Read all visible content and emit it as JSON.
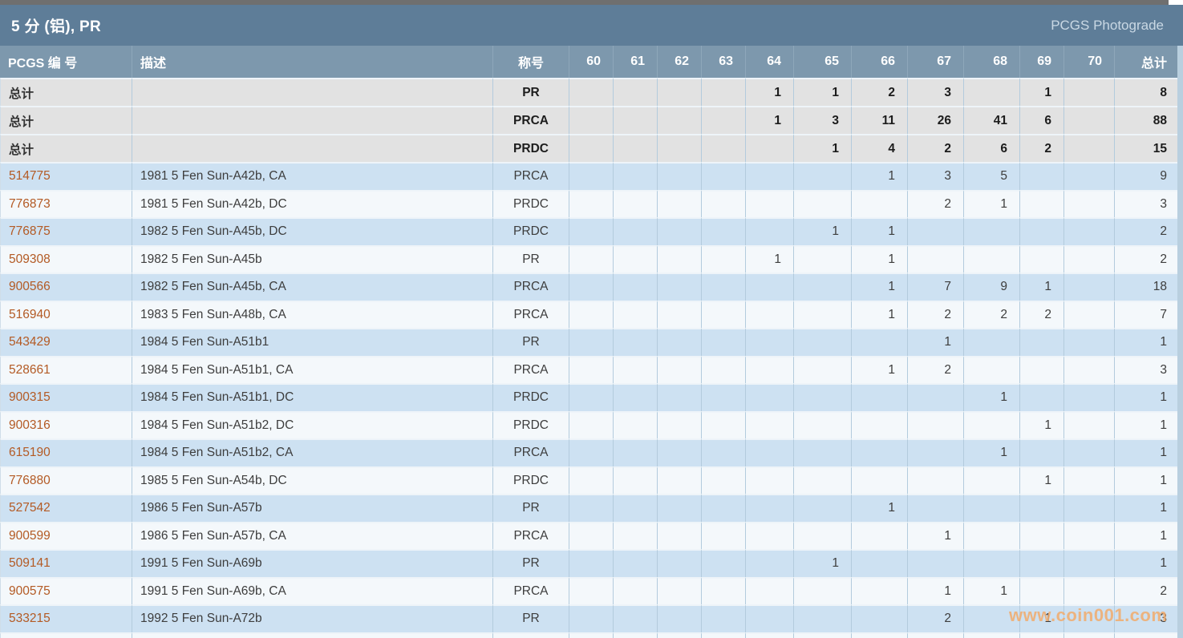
{
  "title_bar": {
    "title": "5 分 (铝), PR",
    "right_label": "PCGS Photograde"
  },
  "watermark": "www.coin001.com",
  "colors": {
    "title_bar_bg": "#5e7d98",
    "header_row_bg": "#7d98ad",
    "total_row_bg": "#e2e2e2",
    "row_blue": "#cde1f2",
    "row_white": "#f4f8fb",
    "grid_line": "#b3cbdd",
    "link": "#b35a24",
    "watermark": "#f0ac6e"
  },
  "table": {
    "columns": {
      "number": "PCGS 编 号",
      "description": "描述",
      "designation": "称号",
      "grades": [
        "60",
        "61",
        "62",
        "63",
        "64",
        "65",
        "66",
        "67",
        "68",
        "69",
        "70"
      ],
      "total": "总计"
    },
    "total_label": "总计",
    "total_rows": [
      {
        "designation": "PR",
        "grades": {
          "64": "1",
          "65": "1",
          "66": "2",
          "67": "3",
          "69": "1"
        },
        "total": "8"
      },
      {
        "designation": "PRCA",
        "grades": {
          "64": "1",
          "65": "3",
          "66": "11",
          "67": "26",
          "68": "41",
          "69": "6"
        },
        "total": "88"
      },
      {
        "designation": "PRDC",
        "grades": {
          "65": "1",
          "66": "4",
          "67": "2",
          "68": "6",
          "69": "2"
        },
        "total": "15"
      }
    ],
    "rows": [
      {
        "number": "514775",
        "description": "1981 5 Fen Sun-A42b, CA",
        "designation": "PRCA",
        "grades": {
          "66": "1",
          "67": "3",
          "68": "5"
        },
        "total": "9"
      },
      {
        "number": "776873",
        "description": "1981 5 Fen Sun-A42b, DC",
        "designation": "PRDC",
        "grades": {
          "67": "2",
          "68": "1"
        },
        "total": "3"
      },
      {
        "number": "776875",
        "description": "1982 5 Fen Sun-A45b, DC",
        "designation": "PRDC",
        "grades": {
          "65": "1",
          "66": "1"
        },
        "total": "2"
      },
      {
        "number": "509308",
        "description": "1982 5 Fen Sun-A45b",
        "designation": "PR",
        "grades": {
          "64": "1",
          "66": "1"
        },
        "total": "2"
      },
      {
        "number": "900566",
        "description": "1982 5 Fen Sun-A45b, CA",
        "designation": "PRCA",
        "grades": {
          "66": "1",
          "67": "7",
          "68": "9",
          "69": "1"
        },
        "total": "18"
      },
      {
        "number": "516940",
        "description": "1983 5 Fen Sun-A48b, CA",
        "designation": "PRCA",
        "grades": {
          "66": "1",
          "67": "2",
          "68": "2",
          "69": "2"
        },
        "total": "7"
      },
      {
        "number": "543429",
        "description": "1984 5 Fen Sun-A51b1",
        "designation": "PR",
        "grades": {
          "67": "1"
        },
        "total": "1"
      },
      {
        "number": "528661",
        "description": "1984 5 Fen Sun-A51b1, CA",
        "designation": "PRCA",
        "grades": {
          "66": "1",
          "67": "2"
        },
        "total": "3"
      },
      {
        "number": "900315",
        "description": "1984 5 Fen Sun-A51b1, DC",
        "designation": "PRDC",
        "grades": {
          "68": "1"
        },
        "total": "1"
      },
      {
        "number": "900316",
        "description": "1984 5 Fen Sun-A51b2, DC",
        "designation": "PRDC",
        "grades": {
          "69": "1"
        },
        "total": "1"
      },
      {
        "number": "615190",
        "description": "1984 5 Fen Sun-A51b2, CA",
        "designation": "PRCA",
        "grades": {
          "68": "1"
        },
        "total": "1"
      },
      {
        "number": "776880",
        "description": "1985 5 Fen Sun-A54b, DC",
        "designation": "PRDC",
        "grades": {
          "69": "1"
        },
        "total": "1"
      },
      {
        "number": "527542",
        "description": "1986 5 Fen Sun-A57b",
        "designation": "PR",
        "grades": {
          "66": "1"
        },
        "total": "1"
      },
      {
        "number": "900599",
        "description": "1986 5 Fen Sun-A57b, CA",
        "designation": "PRCA",
        "grades": {
          "67": "1"
        },
        "total": "1"
      },
      {
        "number": "509141",
        "description": "1991 5 Fen Sun-A69b",
        "designation": "PR",
        "grades": {
          "65": "1"
        },
        "total": "1"
      },
      {
        "number": "900575",
        "description": "1991 5 Fen Sun-A69b, CA",
        "designation": "PRCA",
        "grades": {
          "67": "1",
          "68": "1"
        },
        "total": "2"
      },
      {
        "number": "533215",
        "description": "1992 5 Fen Sun-A72b",
        "designation": "PR",
        "grades": {
          "67": "2",
          "69": "1"
        },
        "total": "3"
      }
    ]
  }
}
